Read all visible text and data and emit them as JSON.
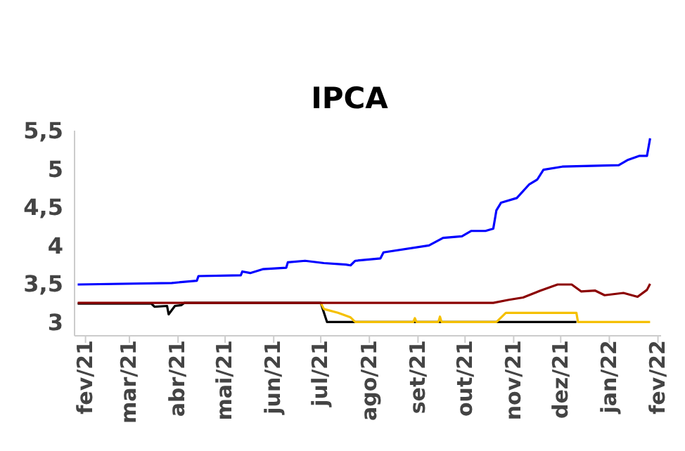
{
  "chart_data": {
    "type": "line",
    "title": "IPCA",
    "xlim": [
      "2021-01-25",
      "2022-02-03"
    ],
    "xticks": [
      {
        "value": "2021-02-01",
        "label": "fev/21"
      },
      {
        "value": "2021-03-01",
        "label": "mar/21"
      },
      {
        "value": "2021-04-01",
        "label": "abr/21"
      },
      {
        "value": "2021-05-01",
        "label": "mai/21"
      },
      {
        "value": "2021-06-01",
        "label": "jun/21"
      },
      {
        "value": "2021-07-01",
        "label": "jul/21"
      },
      {
        "value": "2021-08-01",
        "label": "ago/21"
      },
      {
        "value": "2021-09-01",
        "label": "set/21"
      },
      {
        "value": "2021-10-01",
        "label": "out/21"
      },
      {
        "value": "2021-11-01",
        "label": "nov/21"
      },
      {
        "value": "2021-12-01",
        "label": "dez/21"
      },
      {
        "value": "2022-01-01",
        "label": "jan/22"
      },
      {
        "value": "2022-02-01",
        "label": "fev/22"
      }
    ],
    "ylim": [
      2.82,
      5.5
    ],
    "yticks": [
      3,
      {
        "value": 3.5,
        "label": "3,5"
      },
      4,
      {
        "value": 4.5,
        "label": "4,5"
      },
      5,
      {
        "value": 5.5,
        "label": "5,5"
      }
    ],
    "grid": false,
    "legend": false,
    "marker": "none",
    "line_style": "solid",
    "series": [
      {
        "color": "#000000",
        "x": [
          "2021-01-27",
          "2021-03-15",
          "2021-03-17",
          "2021-03-25",
          "2021-03-26",
          "2021-03-30",
          "2021-04-03",
          "2021-04-05",
          "2021-07-01",
          "2021-07-05",
          "2021-12-11"
        ],
        "values": [
          3.24,
          3.24,
          3.2,
          3.21,
          3.1,
          3.21,
          3.22,
          3.25,
          3.25,
          3.0,
          3.0
        ]
      },
      {
        "color": "#f5c000",
        "x": [
          "2021-07-01",
          "2021-07-03",
          "2021-07-12",
          "2021-07-20",
          "2021-07-23",
          "2021-08-29",
          "2021-08-30",
          "2021-08-31",
          "2021-09-14",
          "2021-09-15",
          "2021-09-16",
          "2021-10-21",
          "2021-10-27",
          "2021-12-11",
          "2021-12-12",
          "2022-01-27"
        ],
        "values": [
          3.25,
          3.17,
          3.12,
          3.06,
          3.0,
          3.0,
          3.05,
          3.0,
          3.0,
          3.07,
          3.0,
          3.0,
          3.12,
          3.12,
          3.0,
          3.0
        ]
      },
      {
        "color": "#8b0000",
        "x": [
          "2021-01-27",
          "2021-10-19",
          "2021-10-29",
          "2021-11-07",
          "2021-11-18",
          "2021-11-29",
          "2021-12-08",
          "2021-12-14",
          "2021-12-23",
          "2021-12-29",
          "2022-01-10",
          "2022-01-19",
          "2022-01-25",
          "2022-01-27"
        ],
        "values": [
          3.25,
          3.25,
          3.29,
          3.32,
          3.41,
          3.49,
          3.49,
          3.4,
          3.41,
          3.35,
          3.38,
          3.33,
          3.42,
          3.5
        ]
      },
      {
        "color": "#0000ff",
        "x": [
          "2021-01-27",
          "2021-03-28",
          "2021-04-13",
          "2021-04-14",
          "2021-05-11",
          "2021-05-12",
          "2021-05-17",
          "2021-05-25",
          "2021-06-09",
          "2021-06-10",
          "2021-06-21",
          "2021-07-03",
          "2021-07-17",
          "2021-07-20",
          "2021-07-23",
          "2021-08-08",
          "2021-08-10",
          "2021-09-08",
          "2021-09-17",
          "2021-09-29",
          "2021-10-05",
          "2021-10-14",
          "2021-10-19",
          "2021-10-21",
          "2021-10-24",
          "2021-11-03",
          "2021-11-11",
          "2021-11-16",
          "2021-11-20",
          "2021-12-02",
          "2022-01-07",
          "2022-01-13",
          "2022-01-20",
          "2022-01-25",
          "2022-01-27"
        ],
        "values": [
          3.49,
          3.51,
          3.54,
          3.6,
          3.61,
          3.66,
          3.64,
          3.69,
          3.71,
          3.78,
          3.8,
          3.77,
          3.75,
          3.74,
          3.8,
          3.83,
          3.91,
          4.0,
          4.1,
          4.12,
          4.19,
          4.19,
          4.22,
          4.46,
          4.56,
          4.62,
          4.8,
          4.86,
          4.99,
          5.03,
          5.05,
          5.12,
          5.17,
          5.17,
          5.4
        ]
      }
    ]
  }
}
